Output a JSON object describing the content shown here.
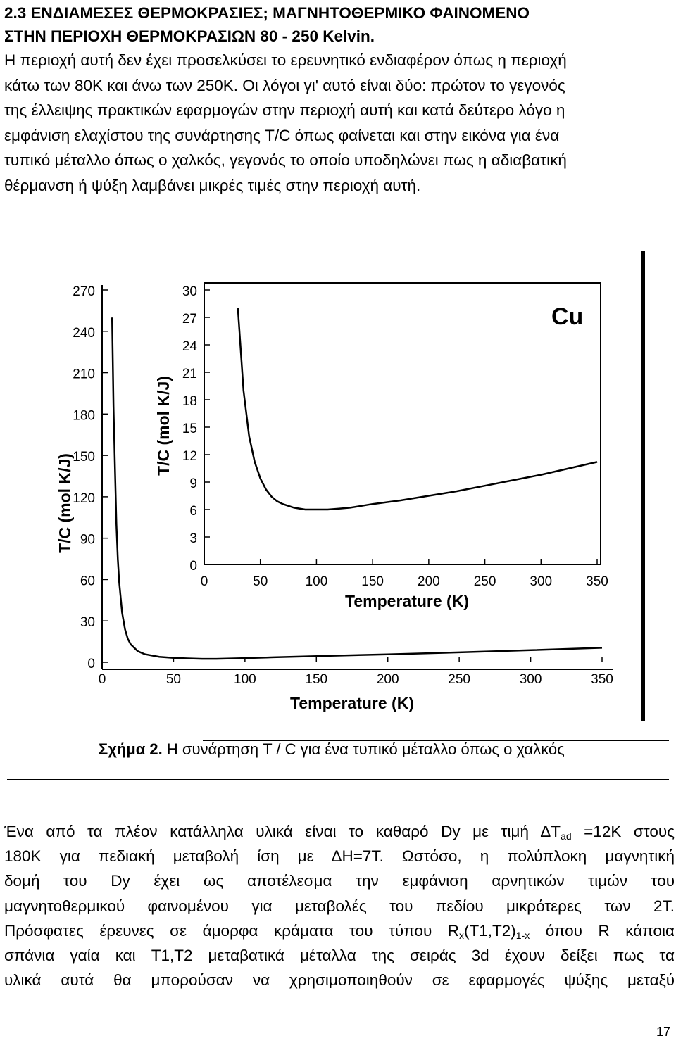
{
  "heading": {
    "line1": "2.3 ΕΝΔΙΑΜΕΣΕΣ ΘΕΡΜΟΚΡΑΣΙΕΣ; ΜΑΓΝΗΤΟΘΕΡΜΙΚΟ ΦΑΙΝΟΜΕΝΟ",
    "line2": "ΣΤΗΝ ΠΕΡΙΟΧΗ ΘΕΡΜΟΚΡΑΣΙΩΝ 80 - 250 Kelvin."
  },
  "paragraph1": [
    "Η περιοχή αυτή δεν έχει προσελκύσει το ερευνητικό ενδιαφέρον όπως η περιοχή",
    "κάτω των 80Κ και άνω των 250Κ. Οι λόγοι γι' αυτό είναι δύο: πρώτον το γεγονός",
    "της έλλειψης πρακτικών εφαρμογών  στην περιοχή αυτή και κατά δεύτερο λόγο η",
    "εμφάνιση ελαχίστου της συνάρτησης T/C όπως φαίνεται και στην εικόνα για ένα",
    "τυπικό μέταλλο όπως ο χαλκός, γεγονός το οποίο υποδηλώνει πως η αδιαβατική",
    "θέρμανση ή ψύξη λαμβάνει μικρές τιμές στην περιοχή αυτή."
  ],
  "figure": {
    "caption_label": "Σχήμα 2.",
    "caption_text": " Η συνάρτηση T / C για ένα τυπικό μέταλλο όπως ο χαλκός"
  },
  "chart_data": [
    {
      "type": "line",
      "xlabel": "Temperature (K)",
      "ylabel": "T/C (mol K/J)",
      "xlim": [
        0,
        350
      ],
      "ylim": [
        0,
        270
      ],
      "x_ticks": [
        "0",
        "50",
        "100",
        "150",
        "200",
        "250",
        "300",
        "350"
      ],
      "y_ticks": [
        "0",
        "30",
        "60",
        "90",
        "120",
        "150",
        "180",
        "210",
        "240",
        "270"
      ],
      "series": [
        {
          "x": [
            7,
            8,
            9,
            10,
            11,
            12,
            14,
            16,
            18,
            20,
            25,
            30,
            40,
            50,
            60,
            70,
            80,
            100,
            120,
            150,
            200,
            250,
            300,
            350
          ],
          "y": [
            250,
            185,
            140,
            100,
            75,
            58,
            36,
            24,
            17,
            13,
            8,
            5.8,
            4,
            3.2,
            2.8,
            2.5,
            2.5,
            3,
            3.6,
            4.5,
            5.7,
            7.2,
            8.8,
            10.5
          ]
        }
      ]
    },
    {
      "type": "line",
      "xlabel": "Temperature (K)",
      "ylabel": "T/C (mol K/J)",
      "title": "Cu",
      "xlim": [
        0,
        350
      ],
      "ylim": [
        0,
        30
      ],
      "x_ticks": [
        "0",
        "50",
        "100",
        "150",
        "200",
        "250",
        "300",
        "350"
      ],
      "y_ticks": [
        "0",
        "3",
        "6",
        "9",
        "12",
        "15",
        "18",
        "21",
        "24",
        "27",
        "30"
      ],
      "series": [
        {
          "x": [
            30,
            35,
            40,
            45,
            50,
            55,
            60,
            65,
            70,
            80,
            90,
            100,
            110,
            120,
            130,
            140,
            150,
            175,
            200,
            225,
            250,
            275,
            300,
            325,
            350
          ],
          "y": [
            28,
            19,
            14,
            11.2,
            9.4,
            8.2,
            7.4,
            6.9,
            6.6,
            6.2,
            6.0,
            6.0,
            6.0,
            6.1,
            6.2,
            6.4,
            6.6,
            7.0,
            7.5,
            8.0,
            8.6,
            9.2,
            9.8,
            10.5,
            11.2
          ]
        }
      ]
    }
  ],
  "paragraph2": {
    "l1_a": "Ένα από τα πλέον κατάλληλα υλικά είναι το καθαρό Dy με τιμή ΔT",
    "l1_sub": "ad",
    "l1_b": " =12K στους",
    "l2": "180K για πεδιακή μεταβολή ίση με ΔH=7T. Ωστόσο, η πολύπλοκη μαγνητική",
    "l3": "δομή του Dy έχει ως αποτέλεσμα την εμφάνιση αρνητικών τιμών του",
    "l4": "μαγνητοθερμικού φαινομένου για μεταβολές του πεδίου μικρότερες των 2T.",
    "l5_a": "Πρόσφατες έρευνες σε άμορφα κράματα του τύπου R",
    "l5_sub1": "x",
    "l5_b": "(T1,T2)",
    "l5_sub2": "1-x",
    "l5_c": " όπου R κάποια",
    "l6": "σπάνια γαία και T1,T2 μεταβατικά μέταλλα της σειράς 3d έχουν δείξει πως τα",
    "l7": "υλικά αυτά θα μπορούσαν να χρησιμοποιηθούν σε εφαρμογές ψύξης μεταξύ"
  },
  "page_number": "17"
}
